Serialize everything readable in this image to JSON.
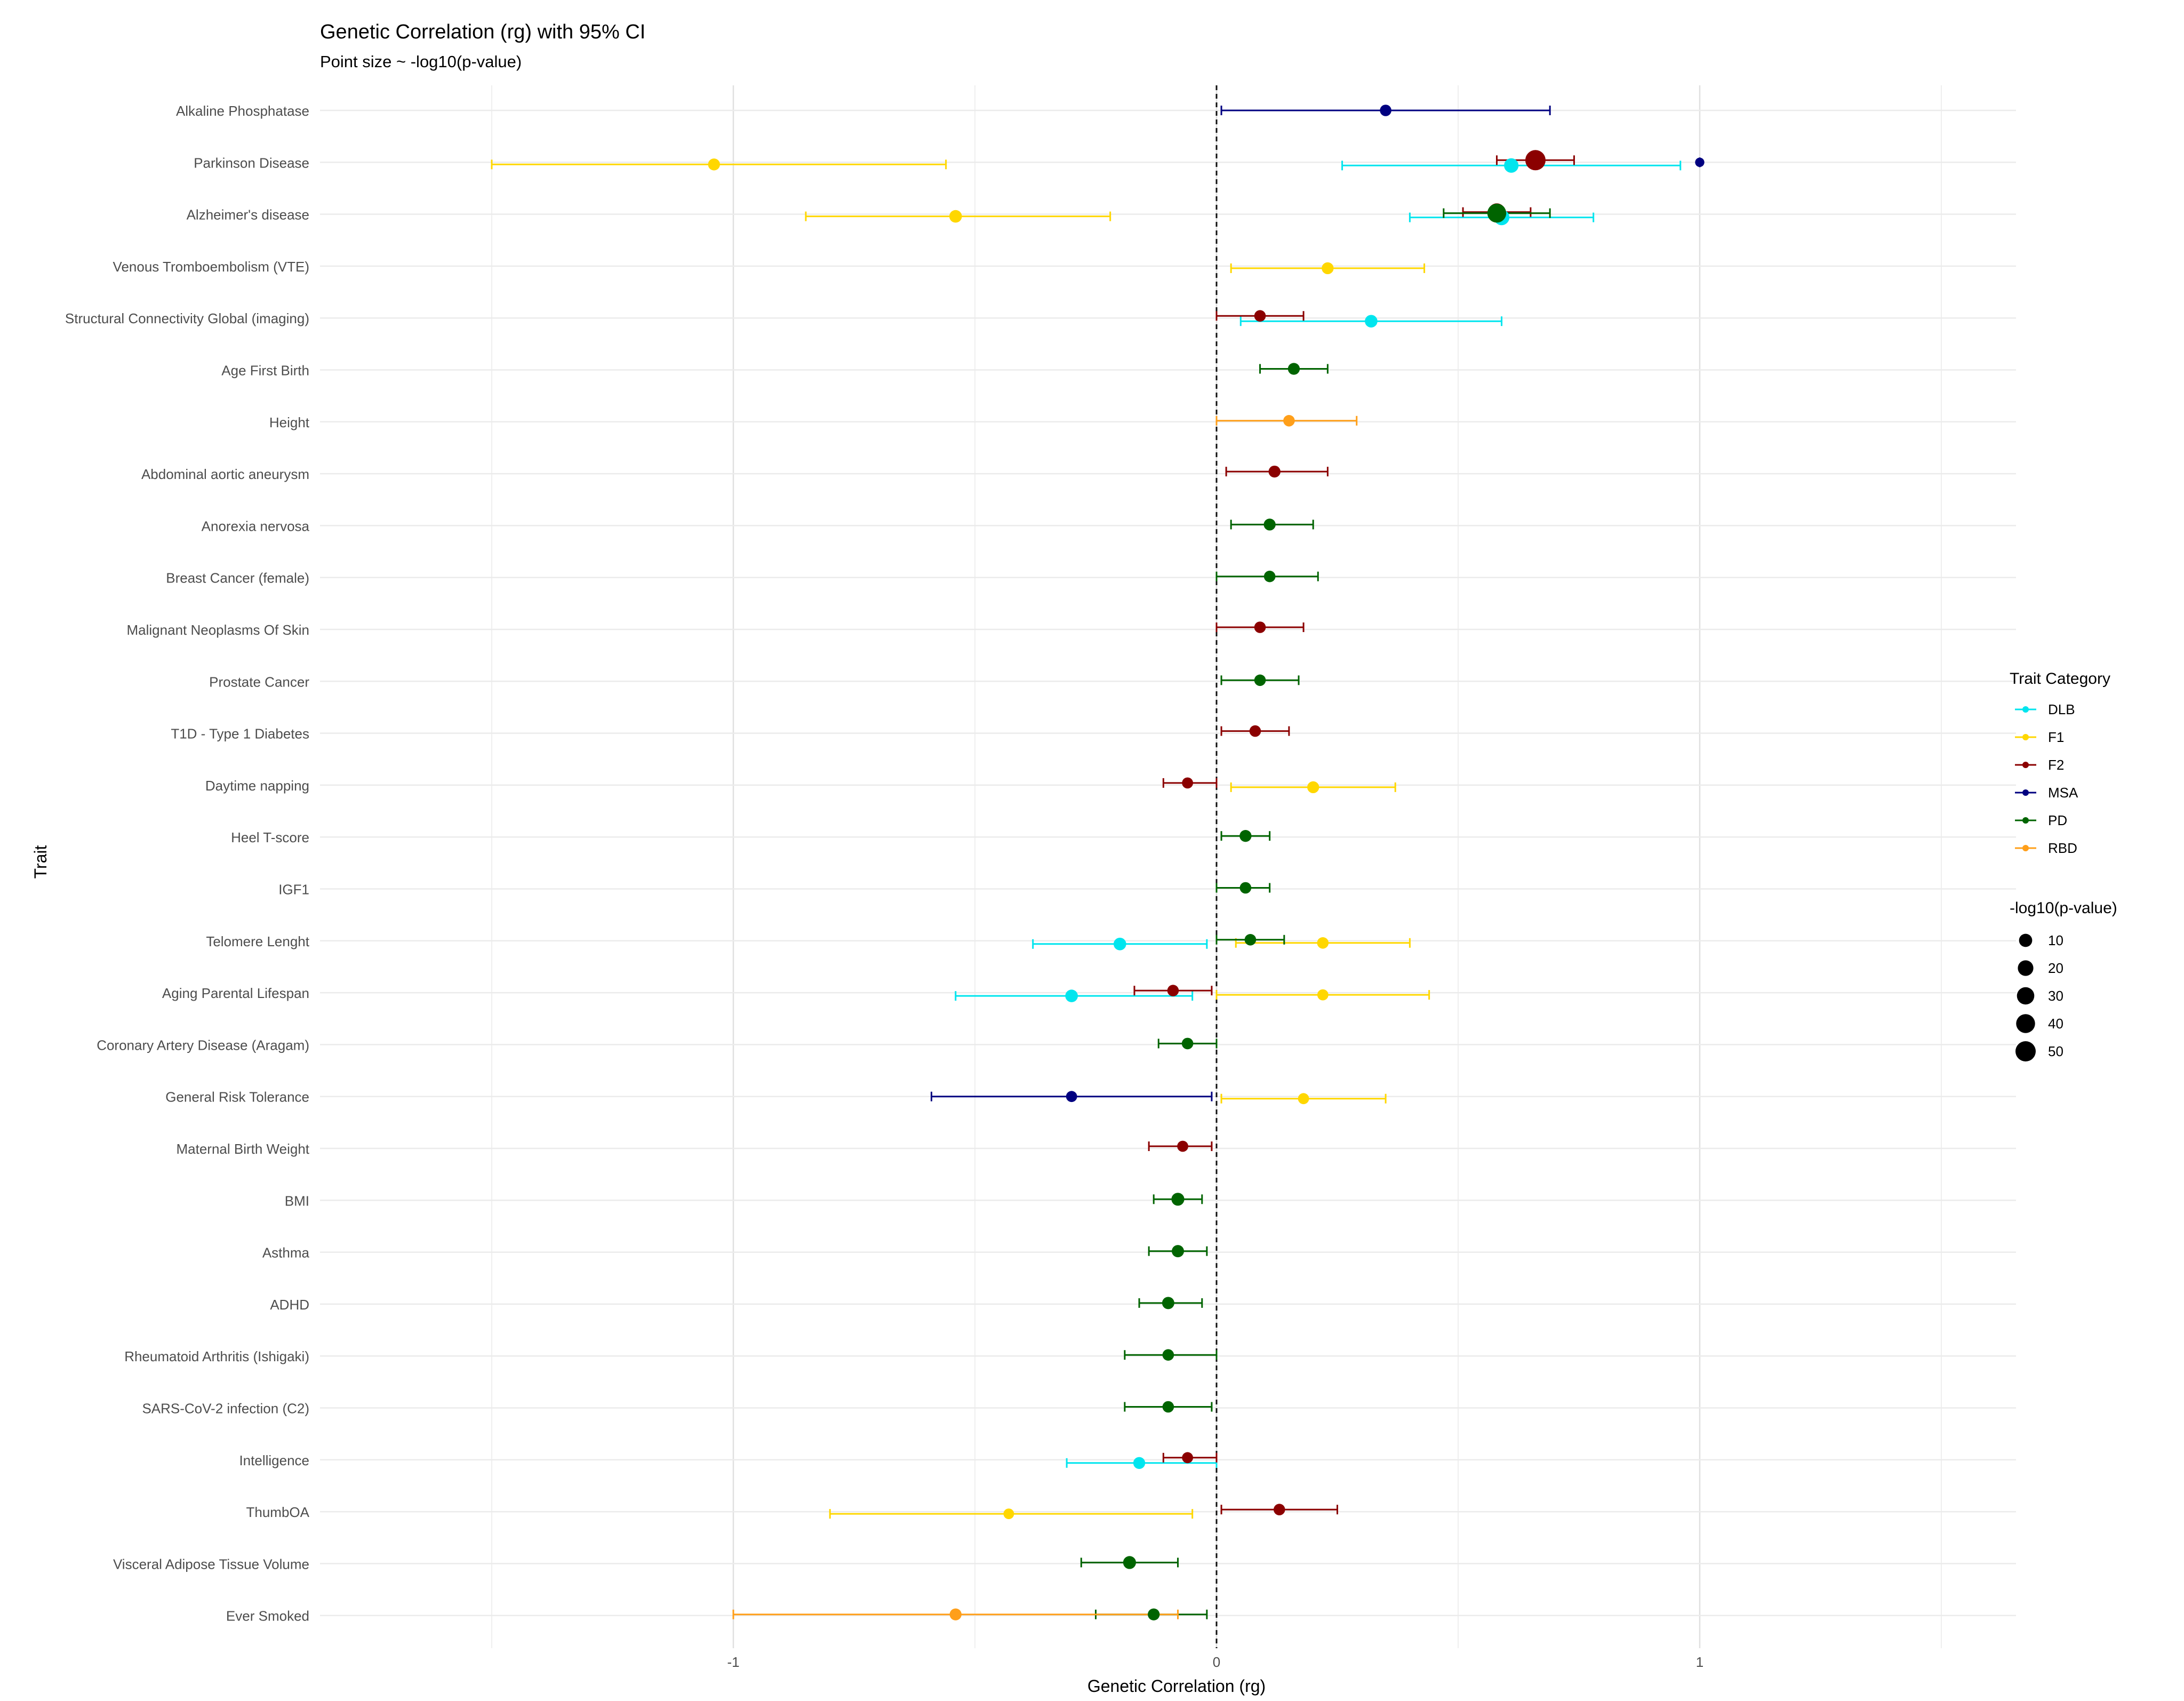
{
  "chart_data": {
    "type": "scatter",
    "title": "Genetic Correlation (rg) with 95% CI",
    "subtitle": "Point size ~ -log10(p-value)",
    "xlabel": "Genetic Correlation (rg)",
    "ylabel": "Trait",
    "x_ticks": [
      "-1",
      "0",
      "1"
    ],
    "x_tick_values": [
      -1,
      0,
      1
    ],
    "xlim": [
      -1.9,
      1.66
    ],
    "grid": true,
    "reference_line": 0,
    "legend_placement": "right",
    "categories": [
      "Alkaline Phosphatase",
      "Parkinson Disease",
      "Alzheimer's disease",
      "Venous Tromboembolism (VTE)",
      "Structural Connectivity Global (imaging)",
      "Age First Birth",
      "Height",
      "Abdominal aortic aneurysm",
      "Anorexia nervosa",
      "Breast Cancer (female)",
      "Malignant Neoplasms Of Skin",
      "Prostate Cancer",
      "T1D - Type 1 Diabetes",
      "Daytime napping",
      "Heel T-score",
      "IGF1",
      "Telomere Lenght",
      "Aging Parental Lifespan",
      "Coronary Artery Disease (Aragam)",
      "General Risk Tolerance",
      "Maternal Birth Weight",
      "BMI",
      "Asthma",
      "ADHD",
      "Rheumatoid Arthritis (Ishigaki)",
      "SARS-CoV-2 infection (C2)",
      "Intelligence",
      "ThumbOA",
      "Visceral Adipose Tissue Volume",
      "Ever Smoked"
    ],
    "series": [
      {
        "name": "DLB",
        "color": "#00E5EE",
        "points": [
          {
            "trait": "Parkinson Disease",
            "x": 0.61,
            "lo": 0.26,
            "hi": 0.96,
            "neglogp": 15
          },
          {
            "trait": "Alzheimer's disease",
            "x": 0.59,
            "lo": 0.4,
            "hi": 0.78,
            "neglogp": 20
          },
          {
            "trait": "Structural Connectivity Global (imaging)",
            "x": 0.32,
            "lo": 0.05,
            "hi": 0.59,
            "neglogp": 8
          },
          {
            "trait": "Telomere Lenght",
            "x": -0.2,
            "lo": -0.38,
            "hi": -0.02,
            "neglogp": 8
          },
          {
            "trait": "Aging Parental Lifespan",
            "x": -0.3,
            "lo": -0.54,
            "hi": -0.05,
            "neglogp": 8
          },
          {
            "trait": "Intelligence",
            "x": -0.16,
            "lo": -0.31,
            "hi": 0.0,
            "neglogp": 6
          }
        ]
      },
      {
        "name": "F1",
        "color": "#FFD700",
        "points": [
          {
            "trait": "Parkinson Disease",
            "x": -1.04,
            "lo": -1.5,
            "hi": -0.56,
            "neglogp": 6
          },
          {
            "trait": "Alzheimer's disease",
            "x": -0.54,
            "lo": -0.85,
            "hi": -0.22,
            "neglogp": 8
          },
          {
            "trait": "Venous Tromboembolism (VTE)",
            "x": 0.23,
            "lo": 0.03,
            "hi": 0.43,
            "neglogp": 6
          },
          {
            "trait": "Daytime napping",
            "x": 0.2,
            "lo": 0.03,
            "hi": 0.37,
            "neglogp": 6
          },
          {
            "trait": "Telomere Lenght",
            "x": 0.22,
            "lo": 0.04,
            "hi": 0.4,
            "neglogp": 5
          },
          {
            "trait": "Aging Parental Lifespan",
            "x": 0.22,
            "lo": 0.0,
            "hi": 0.44,
            "neglogp": 4
          },
          {
            "trait": "General Risk Tolerance",
            "x": 0.18,
            "lo": 0.01,
            "hi": 0.35,
            "neglogp": 4
          },
          {
            "trait": "ThumbOA",
            "x": -0.43,
            "lo": -0.8,
            "hi": -0.05,
            "neglogp": 3
          }
        ]
      },
      {
        "name": "F2",
        "color": "#8B0000",
        "points": [
          {
            "trait": "Parkinson Disease",
            "x": 0.66,
            "lo": 0.58,
            "hi": 0.74,
            "neglogp": 50
          },
          {
            "trait": "Alzheimer's disease",
            "x": 0.58,
            "lo": 0.51,
            "hi": 0.65,
            "neglogp": 30
          },
          {
            "trait": "Structural Connectivity Global (imaging)",
            "x": 0.09,
            "lo": 0.0,
            "hi": 0.18,
            "neglogp": 5
          },
          {
            "trait": "Abdominal aortic aneurysm",
            "x": 0.12,
            "lo": 0.02,
            "hi": 0.23,
            "neglogp": 6
          },
          {
            "trait": "Malignant Neoplasms Of Skin",
            "x": 0.09,
            "lo": 0.0,
            "hi": 0.18,
            "neglogp": 5
          },
          {
            "trait": "T1D - Type 1 Diabetes",
            "x": 0.08,
            "lo": 0.01,
            "hi": 0.15,
            "neglogp": 5
          },
          {
            "trait": "Daytime napping",
            "x": -0.06,
            "lo": -0.11,
            "hi": 0.0,
            "neglogp": 4
          },
          {
            "trait": "Aging Parental Lifespan",
            "x": -0.09,
            "lo": -0.17,
            "hi": -0.01,
            "neglogp": 5
          },
          {
            "trait": "Maternal Birth Weight",
            "x": -0.07,
            "lo": -0.14,
            "hi": -0.01,
            "neglogp": 4
          },
          {
            "trait": "Intelligence",
            "x": -0.06,
            "lo": -0.11,
            "hi": 0.0,
            "neglogp": 4
          },
          {
            "trait": "ThumbOA",
            "x": 0.13,
            "lo": 0.01,
            "hi": 0.25,
            "neglogp": 5
          }
        ]
      },
      {
        "name": "MSA",
        "color": "#000080",
        "points": [
          {
            "trait": "Alkaline Phosphatase",
            "x": 0.35,
            "lo": 0.01,
            "hi": 0.69,
            "neglogp": 5
          },
          {
            "trait": "Parkinson Disease",
            "x": 1.0,
            "lo": 1.0,
            "hi": 1.0,
            "neglogp": 1
          },
          {
            "trait": "General Risk Tolerance",
            "x": -0.3,
            "lo": -0.59,
            "hi": -0.01,
            "neglogp": 4
          }
        ]
      },
      {
        "name": "PD",
        "color": "#006400",
        "points": [
          {
            "trait": "Alzheimer's disease",
            "x": 0.58,
            "lo": 0.47,
            "hi": 0.69,
            "neglogp": 40
          },
          {
            "trait": "Age First Birth",
            "x": 0.16,
            "lo": 0.09,
            "hi": 0.23,
            "neglogp": 6
          },
          {
            "trait": "Anorexia nervosa",
            "x": 0.11,
            "lo": 0.03,
            "hi": 0.2,
            "neglogp": 6
          },
          {
            "trait": "Breast Cancer (female)",
            "x": 0.11,
            "lo": 0.0,
            "hi": 0.21,
            "neglogp": 5
          },
          {
            "trait": "Prostate Cancer",
            "x": 0.09,
            "lo": 0.01,
            "hi": 0.17,
            "neglogp": 5
          },
          {
            "trait": "Heel T-score",
            "x": 0.06,
            "lo": 0.01,
            "hi": 0.11,
            "neglogp": 6
          },
          {
            "trait": "IGF1",
            "x": 0.06,
            "lo": 0.0,
            "hi": 0.11,
            "neglogp": 5
          },
          {
            "trait": "Telomere Lenght",
            "x": 0.07,
            "lo": 0.0,
            "hi": 0.14,
            "neglogp": 5
          },
          {
            "trait": "Coronary Artery Disease (Aragam)",
            "x": -0.06,
            "lo": -0.12,
            "hi": 0.0,
            "neglogp": 5
          },
          {
            "trait": "BMI",
            "x": -0.08,
            "lo": -0.13,
            "hi": -0.03,
            "neglogp": 9
          },
          {
            "trait": "Asthma",
            "x": -0.08,
            "lo": -0.14,
            "hi": -0.02,
            "neglogp": 7
          },
          {
            "trait": "ADHD",
            "x": -0.1,
            "lo": -0.16,
            "hi": -0.03,
            "neglogp": 7
          },
          {
            "trait": "Rheumatoid Arthritis (Ishigaki)",
            "x": -0.1,
            "lo": -0.19,
            "hi": 0.0,
            "neglogp": 5
          },
          {
            "trait": "SARS-CoV-2 infection (C2)",
            "x": -0.1,
            "lo": -0.19,
            "hi": -0.01,
            "neglogp": 5
          },
          {
            "trait": "Visceral Adipose Tissue Volume",
            "x": -0.18,
            "lo": -0.28,
            "hi": -0.08,
            "neglogp": 9
          },
          {
            "trait": "Ever Smoked",
            "x": -0.13,
            "lo": -0.25,
            "hi": -0.02,
            "neglogp": 6
          }
        ]
      },
      {
        "name": "RBD",
        "color": "#FF9F1A",
        "points": [
          {
            "trait": "Height",
            "x": 0.15,
            "lo": 0.0,
            "hi": 0.29,
            "neglogp": 5
          },
          {
            "trait": "Ever Smoked",
            "x": -0.54,
            "lo": -1.0,
            "hi": -0.08,
            "neglogp": 6
          }
        ]
      }
    ],
    "legend_color": {
      "title": "Trait Category",
      "items": [
        "DLB",
        "F1",
        "F2",
        "MSA",
        "PD",
        "RBD"
      ]
    },
    "legend_size": {
      "title": "-log10(p-value)",
      "items": [
        "10",
        "20",
        "30",
        "40",
        "50"
      ],
      "values": [
        10,
        20,
        30,
        40,
        50
      ]
    }
  }
}
